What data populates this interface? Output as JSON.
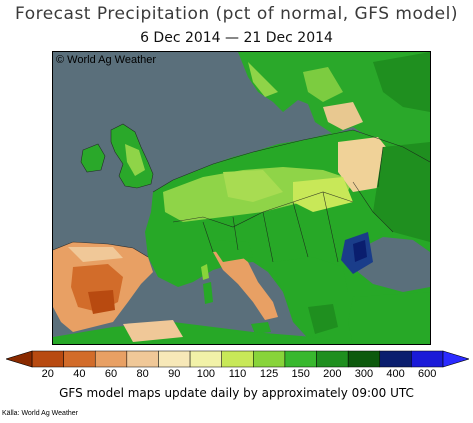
{
  "header": {
    "title": "Forecast Precipitation (pct of normal, GFS model)",
    "subtitle": "6 Dec 2014 — 21 Dec 2014"
  },
  "map": {
    "credit": "© World Ag Weather",
    "water_color": "#5a6f7b",
    "land_base_color": "#27a827"
  },
  "legend": {
    "ticks": [
      "20",
      "40",
      "60",
      "80",
      "90",
      "100",
      "110",
      "125",
      "150",
      "200",
      "300",
      "400",
      "600"
    ],
    "colors": [
      "#b84a10",
      "#d26c2a",
      "#e8a064",
      "#f0c898",
      "#f7e8b8",
      "#f2f2a8",
      "#c8e858",
      "#88d43a",
      "#38b82e",
      "#1f8f1f",
      "#0d5a0d",
      "#0a1e6e",
      "#1a1ad8"
    ]
  },
  "footer": {
    "note": "GFS model maps update daily by approximately 09:00 UTC",
    "source": "Källa: World Ag Weather"
  }
}
